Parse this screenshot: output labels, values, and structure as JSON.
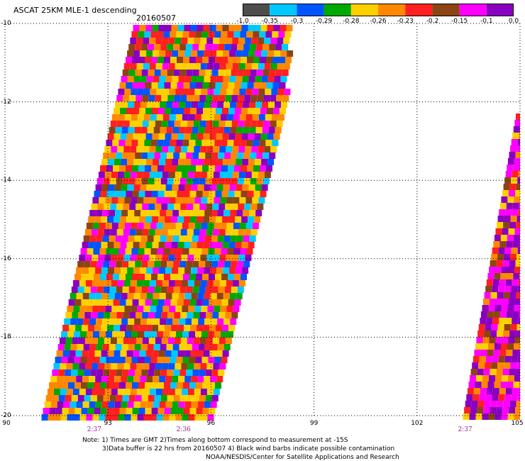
{
  "header": {
    "title": "ASCAT 25KM MLE-1 descending",
    "date": "20160507"
  },
  "colorbar": {
    "colors": [
      "#4d4d4d",
      "#00c8ff",
      "#0055ff",
      "#00a800",
      "#ffd000",
      "#ff8800",
      "#ff2020",
      "#8b4513",
      "#ff00ff",
      "#8a00c0"
    ],
    "labels": [
      "-1.0",
      "-0.35",
      "-0.3",
      "-0.29",
      "-0.28",
      "-0.26",
      "-0.23",
      "-0.2",
      "-0.15",
      "-0.1",
      "0.0"
    ]
  },
  "axes": {
    "lon_ticks": [
      "90",
      "93",
      "96",
      "99",
      "102",
      "105"
    ],
    "lat_ticks": [
      "-10",
      "-12",
      "-14",
      "-16",
      "-18",
      "-20"
    ],
    "lon_range": [
      90,
      105
    ],
    "lat_range": [
      -20,
      -10
    ],
    "grid": "dotted"
  },
  "time_labels": [
    {
      "text": "2:37",
      "lon": 92.6
    },
    {
      "text": "2:36",
      "lon": 95.2
    },
    {
      "text": "2:37",
      "lon": 103.4
    }
  ],
  "notes": {
    "line1": "Note: 1) Times are GMT 2)Times along bottom correspond to measurement at -15S",
    "line2": "3)Data buffer is 22 hrs from 20160507 4) Black wind barbs indicate possible contamination",
    "line3": "NOAA/NESDIS/Center for Satellite Applications and Research"
  }
}
